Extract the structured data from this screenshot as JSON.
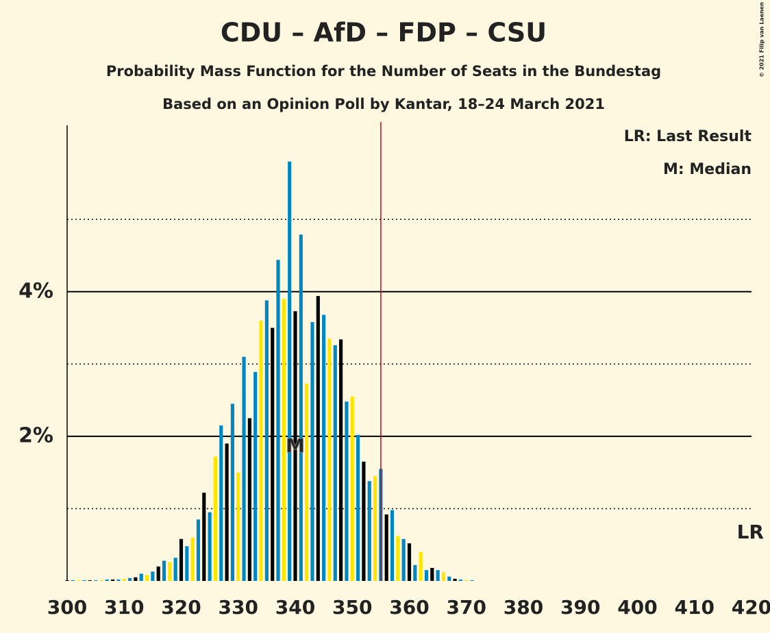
{
  "chart_data": {
    "type": "bar",
    "title": "CDU – AfD – FDP – CSU",
    "subtitle": "Probability Mass Function for the Number of Seats in the Bundestag",
    "subtitle2": "Based on an Opinion Poll by Kantar, 18–24 March 2021",
    "copyright": "© 2021 Filip van Laenen",
    "legend_texts": [
      "LR: Last Result",
      "M: Median"
    ],
    "bar_colors": [
      "#000000",
      "#0087c1",
      "#ffe600",
      "#0087c1"
    ],
    "x_start": 300,
    "values": [
      0.01,
      0.01,
      0.01,
      0.01,
      0.01,
      0.01,
      0.01,
      0.02,
      0.02,
      0.02,
      0.03,
      0.04,
      0.05,
      0.1,
      0.08,
      0.13,
      0.2,
      0.28,
      0.26,
      0.32,
      0.58,
      0.48,
      0.6,
      0.85,
      1.22,
      0.95,
      1.72,
      2.15,
      1.9,
      2.45,
      1.5,
      3.1,
      2.25,
      2.89,
      3.6,
      3.88,
      3.5,
      4.44,
      3.9,
      5.8,
      3.73,
      4.79,
      2.73,
      3.58,
      3.94,
      3.68,
      3.35,
      3.26,
      3.34,
      2.48,
      2.55,
      2.02,
      1.65,
      1.38,
      1.45,
      1.55,
      0.92,
      0.98,
      0.62,
      0.58,
      0.52,
      0.22,
      0.4,
      0.15,
      0.18,
      0.15,
      0.12,
      0.06,
      0.03,
      0.02,
      0.01,
      0.01,
      0,
      0,
      0,
      0,
      0,
      0,
      0,
      0,
      0,
      0,
      0,
      0,
      0,
      0,
      0,
      0,
      0,
      0,
      0,
      0,
      0,
      0,
      0,
      0,
      0,
      0,
      0,
      0,
      0,
      0,
      0,
      0,
      0,
      0,
      0,
      0,
      0,
      0,
      0,
      0,
      0,
      0,
      0,
      0,
      0,
      0,
      0,
      0,
      0
    ],
    "xlim": [
      300,
      420
    ],
    "xticks": [
      300,
      310,
      320,
      330,
      340,
      350,
      360,
      370,
      380,
      390,
      400,
      410,
      420
    ],
    "ylim": [
      0,
      6.3
    ],
    "yticks": [
      {
        "value": 2,
        "label": "2%"
      },
      {
        "value": 4,
        "label": "4%"
      }
    ],
    "minor_grid": [
      1,
      3,
      5
    ],
    "threshold_line": 355,
    "threshold_color": "#d0021b",
    "median": 340,
    "median_label": "M",
    "last_result_label": "LR"
  }
}
